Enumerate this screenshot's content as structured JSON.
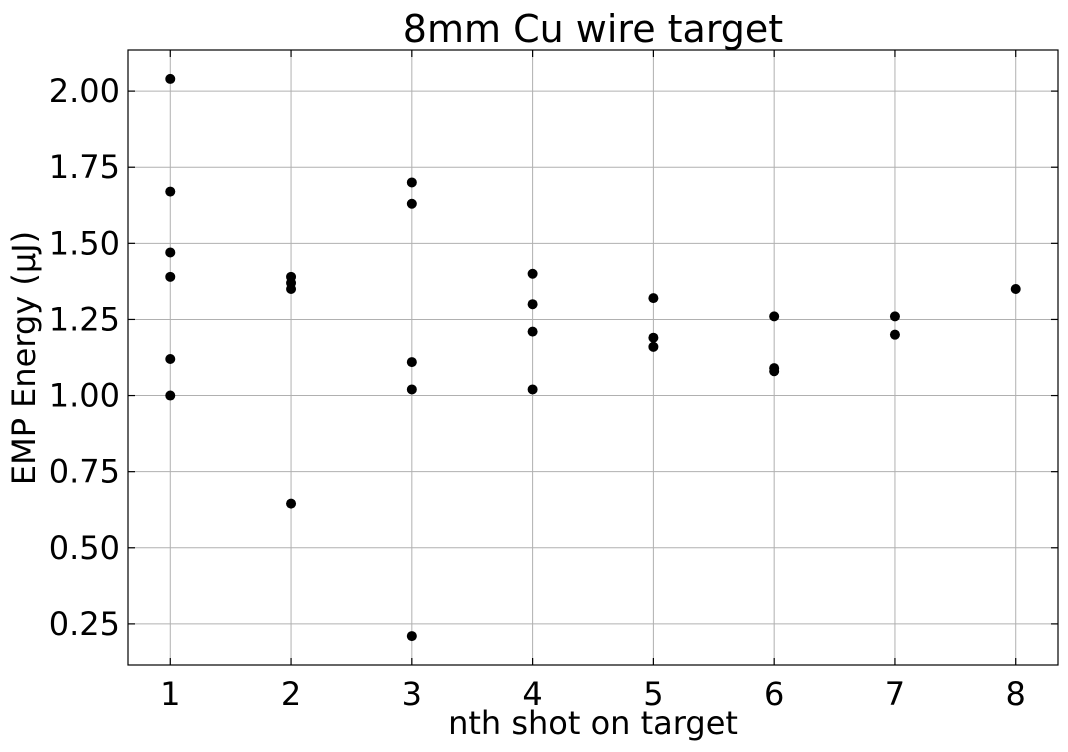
{
  "chart_data": {
    "type": "scatter",
    "title": "8mm Cu wire target",
    "xlabel": "nth shot on target",
    "ylabel": "EMP Energy (μJ)",
    "xlim": [
      0.65,
      8.35
    ],
    "ylim": [
      0.115,
      2.135
    ],
    "xticks": [
      1,
      2,
      3,
      4,
      5,
      6,
      7,
      8
    ],
    "xtick_labels": [
      "1",
      "2",
      "3",
      "4",
      "5",
      "6",
      "7",
      "8"
    ],
    "yticks": [
      0.25,
      0.5,
      0.75,
      1.0,
      1.25,
      1.5,
      1.75,
      2.0
    ],
    "ytick_labels": [
      "0.25",
      "0.50",
      "0.75",
      "1.00",
      "1.25",
      "1.50",
      "1.75",
      "2.00"
    ],
    "grid": true,
    "marker_color": "#000000",
    "points": [
      {
        "x": 1,
        "y": 2.04
      },
      {
        "x": 1,
        "y": 1.67
      },
      {
        "x": 1,
        "y": 1.47
      },
      {
        "x": 1,
        "y": 1.39
      },
      {
        "x": 1,
        "y": 1.12
      },
      {
        "x": 1,
        "y": 1.0
      },
      {
        "x": 2,
        "y": 1.39
      },
      {
        "x": 2,
        "y": 1.37
      },
      {
        "x": 2,
        "y": 1.35
      },
      {
        "x": 2,
        "y": 0.645
      },
      {
        "x": 3,
        "y": 1.7
      },
      {
        "x": 3,
        "y": 1.63
      },
      {
        "x": 3,
        "y": 1.11
      },
      {
        "x": 3,
        "y": 1.02
      },
      {
        "x": 3,
        "y": 0.21
      },
      {
        "x": 4,
        "y": 1.4
      },
      {
        "x": 4,
        "y": 1.3
      },
      {
        "x": 4,
        "y": 1.21
      },
      {
        "x": 4,
        "y": 1.02
      },
      {
        "x": 5,
        "y": 1.32
      },
      {
        "x": 5,
        "y": 1.19
      },
      {
        "x": 5,
        "y": 1.16
      },
      {
        "x": 6,
        "y": 1.26
      },
      {
        "x": 6,
        "y": 1.09
      },
      {
        "x": 6,
        "y": 1.08
      },
      {
        "x": 7,
        "y": 1.26
      },
      {
        "x": 7,
        "y": 1.2
      },
      {
        "x": 8,
        "y": 1.35
      }
    ]
  }
}
